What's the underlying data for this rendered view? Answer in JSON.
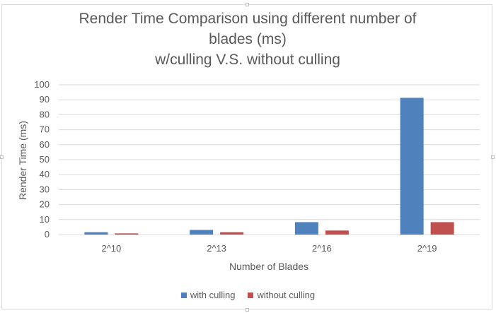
{
  "chart_data": {
    "type": "bar",
    "title_lines": [
      "Render Time Comparison using different number of",
      "blades (ms)",
      "w/culling V.S. without culling"
    ],
    "xlabel": "Number of Blades",
    "ylabel": "Render Time (ms)",
    "categories": [
      "2^10",
      "2^13",
      "2^16",
      "2^19"
    ],
    "ylim": [
      0,
      100
    ],
    "yticks": [
      0,
      10,
      20,
      30,
      40,
      50,
      60,
      70,
      80,
      90,
      100
    ],
    "grid": true,
    "legend_position": "bottom",
    "series": [
      {
        "name": "with culling",
        "color": "#4f81bd",
        "values": [
          1.6,
          3.1,
          8.3,
          91.3
        ]
      },
      {
        "name": "without culling",
        "color": "#c0504d",
        "values": [
          0.8,
          1.6,
          2.7,
          8.3
        ]
      }
    ]
  },
  "colors": {
    "gridline": "#d9d9d9",
    "axis_text": "#595959"
  }
}
